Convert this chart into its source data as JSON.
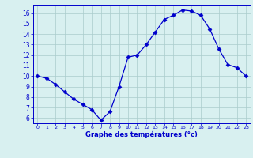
{
  "hours": [
    0,
    1,
    2,
    3,
    4,
    5,
    6,
    7,
    8,
    9,
    10,
    11,
    12,
    13,
    14,
    15,
    16,
    17,
    18,
    19,
    20,
    21,
    22,
    23
  ],
  "temps": [
    10.0,
    9.8,
    9.2,
    8.5,
    7.8,
    7.3,
    6.8,
    5.8,
    6.6,
    9.0,
    11.8,
    12.0,
    13.0,
    14.2,
    15.4,
    15.8,
    16.3,
    16.2,
    15.8,
    14.5,
    12.6,
    11.1,
    10.8,
    10.0
  ],
  "line_color": "#0000cc",
  "marker": "D",
  "marker_size": 2.5,
  "bg_color": "#d8f0f0",
  "grid_color": "#aacccc",
  "axis_label_color": "#0000cc",
  "tick_color": "#0000cc",
  "xlabel": "Graphe des températures (°c)",
  "ylim": [
    5.5,
    16.8
  ],
  "xlim": [
    -0.5,
    23.5
  ],
  "yticks": [
    6,
    7,
    8,
    9,
    10,
    11,
    12,
    13,
    14,
    15,
    16
  ],
  "xticks": [
    0,
    1,
    2,
    3,
    4,
    5,
    6,
    7,
    8,
    9,
    10,
    11,
    12,
    13,
    14,
    15,
    16,
    17,
    18,
    19,
    20,
    21,
    22,
    23
  ]
}
